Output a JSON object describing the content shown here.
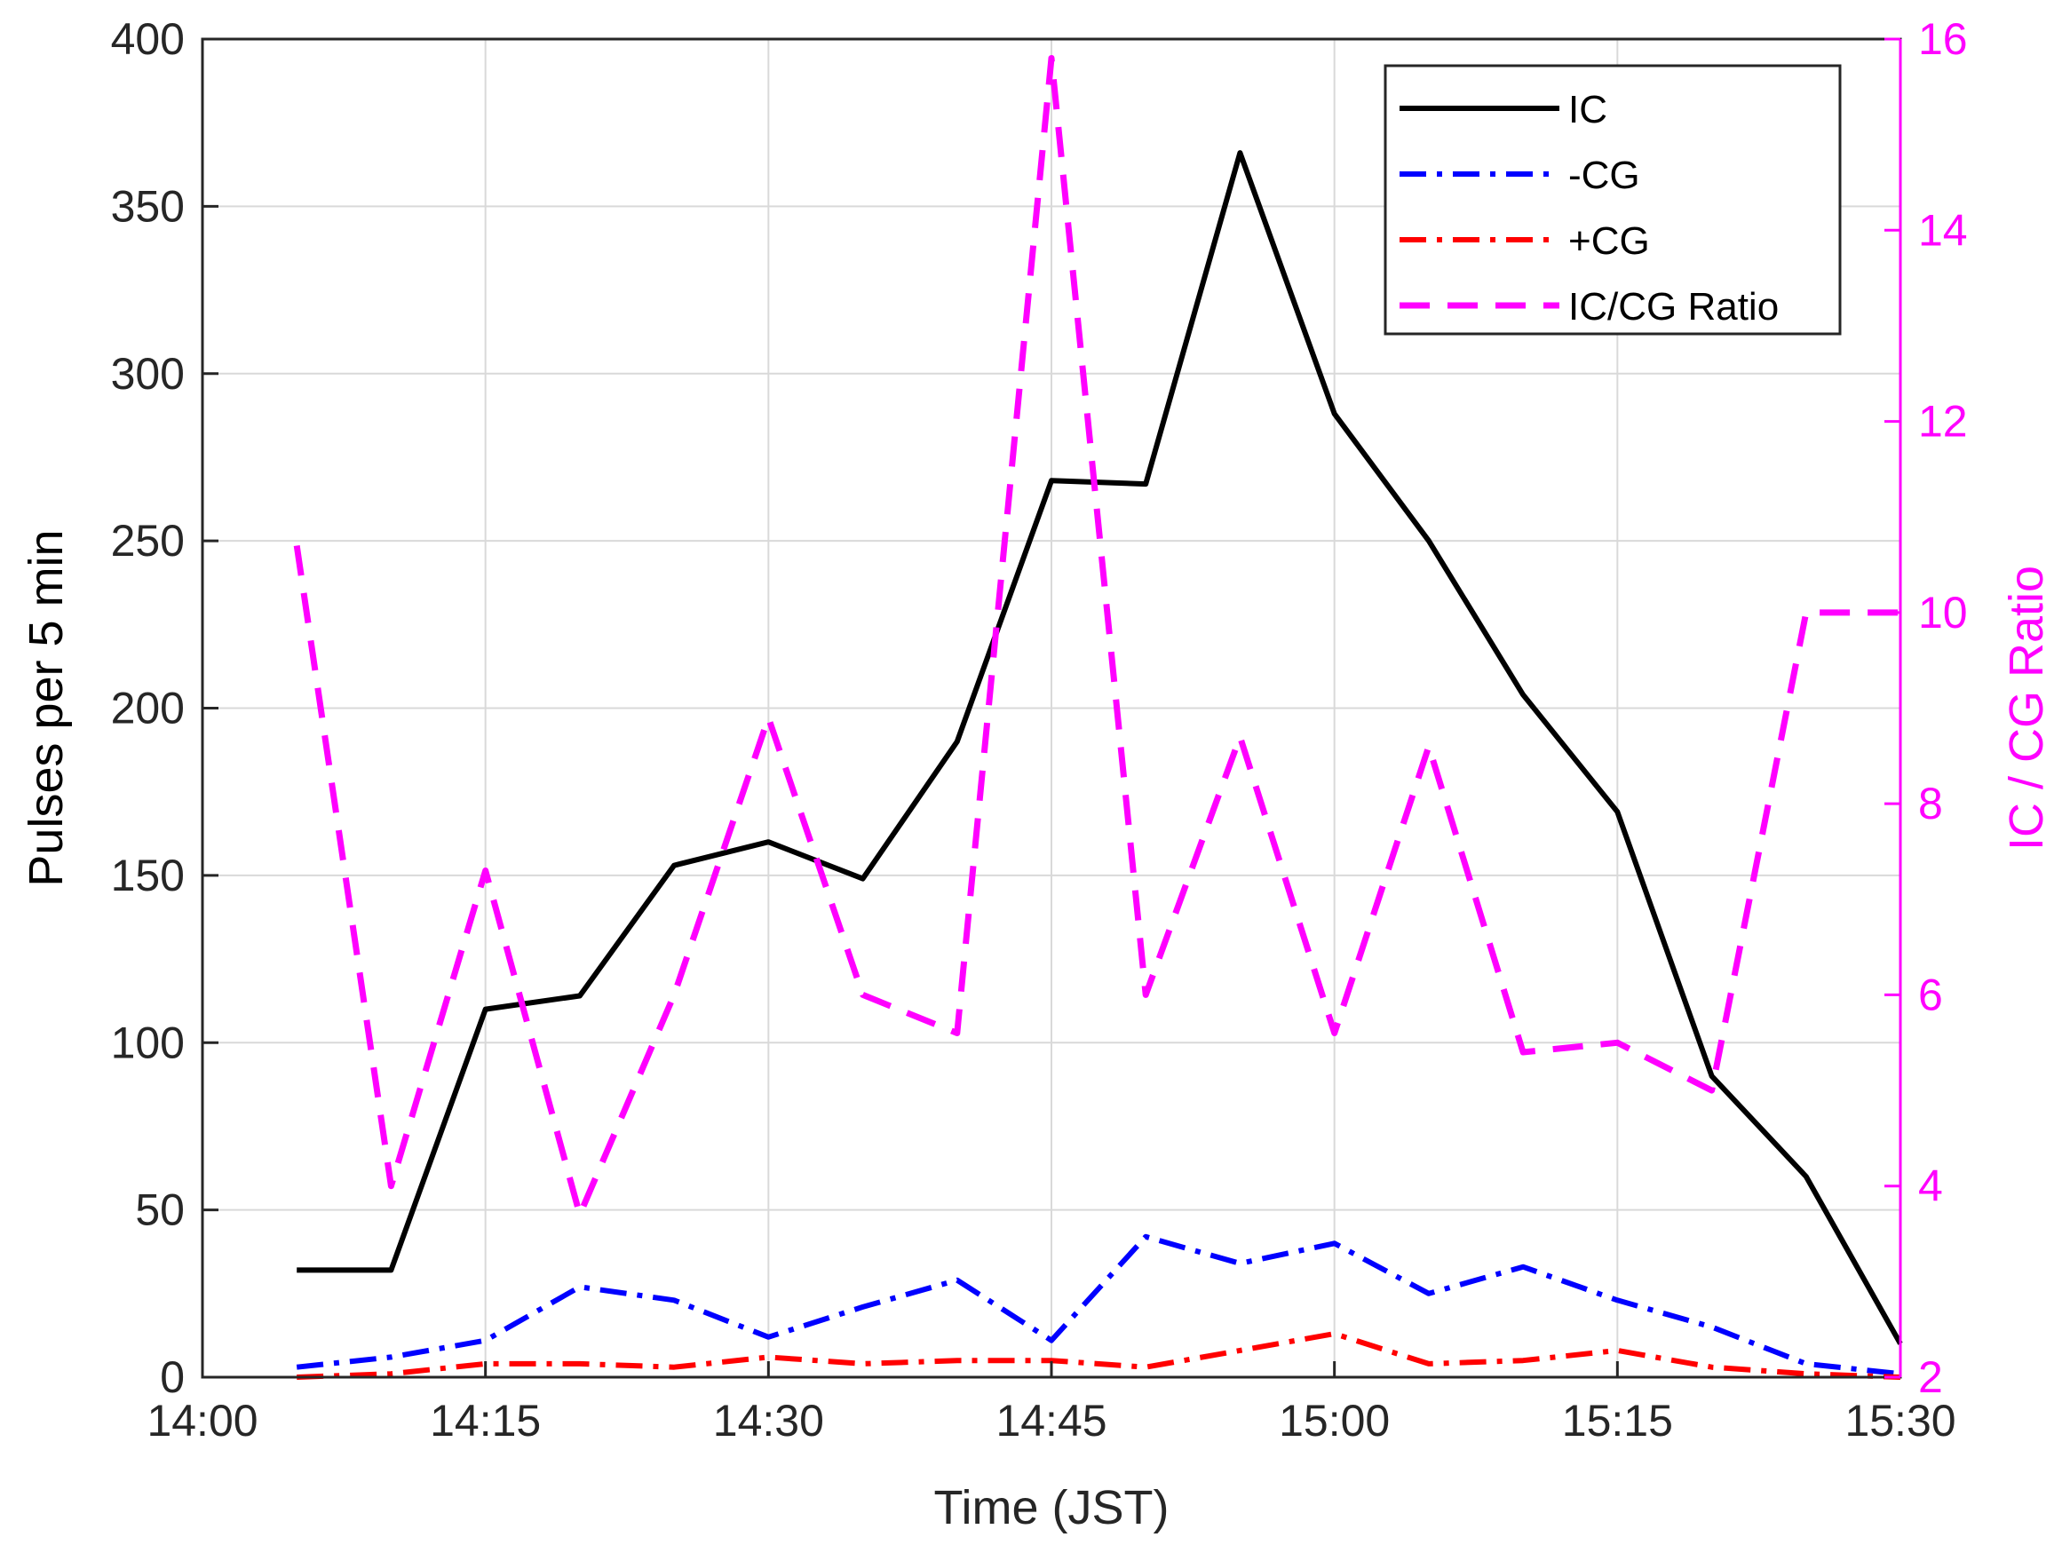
{
  "chart_data": {
    "type": "line",
    "x_format": "HH:MM",
    "x": [
      "14:05",
      "14:10",
      "14:15",
      "14:20",
      "14:25",
      "14:30",
      "14:35",
      "14:40",
      "14:45",
      "14:50",
      "14:55",
      "15:00",
      "15:05",
      "15:10",
      "15:15",
      "15:20",
      "15:25",
      "15:30"
    ],
    "xlim": [
      "14:00",
      "15:30"
    ],
    "xticks": [
      "14:00",
      "14:15",
      "14:30",
      "14:45",
      "15:00",
      "15:15",
      "15:30"
    ],
    "xlabel": "Time (JST)",
    "y_left": {
      "label": "Pulses per 5 min",
      "lim": [
        0,
        400
      ],
      "ticks": [
        "0",
        "50",
        "100",
        "150",
        "200",
        "250",
        "300",
        "350",
        "400"
      ]
    },
    "y_right": {
      "label": "IC / CG Ratio",
      "lim": [
        2,
        16
      ],
      "ticks": [
        "2",
        "4",
        "6",
        "8",
        "10",
        "12",
        "14",
        "16"
      ]
    },
    "grid": true,
    "legend_position": "top-right",
    "colors": {
      "ic": "#000000",
      "neg_cg": "#0000ff",
      "pos_cg": "#ff0000",
      "ratio": "#ff00ff",
      "right_axis": "#ff00ff",
      "grid": "#d9d9d9"
    },
    "series": [
      {
        "name": "IC",
        "axis": "left",
        "style": "solid",
        "color": "#000000",
        "values": [
          32,
          32,
          110,
          114,
          153,
          160,
          149,
          190,
          268,
          267,
          366,
          288,
          250,
          204,
          169,
          90,
          60,
          10
        ]
      },
      {
        "name": "-CG",
        "axis": "left",
        "style": "dashdot",
        "color": "#0000ff",
        "values": [
          3,
          6,
          11,
          27,
          23,
          12,
          21,
          29,
          11,
          42,
          34,
          40,
          25,
          33,
          23,
          15,
          4,
          1
        ]
      },
      {
        "name": "+CG",
        "axis": "left",
        "style": "dashdot",
        "color": "#ff0000",
        "values": [
          0,
          1,
          4,
          4,
          3,
          6,
          4,
          5,
          5,
          3,
          8,
          13,
          4,
          5,
          8,
          3,
          1,
          0
        ]
      },
      {
        "name": "IC/CG Ratio",
        "axis": "right",
        "style": "dashed",
        "color": "#ff00ff",
        "values": [
          10.7,
          4.0,
          7.3,
          3.7,
          6.0,
          8.9,
          6.0,
          5.6,
          15.8,
          6.0,
          8.7,
          5.6,
          8.6,
          5.4,
          5.5,
          5.0,
          10.0,
          10.0
        ]
      }
    ]
  }
}
